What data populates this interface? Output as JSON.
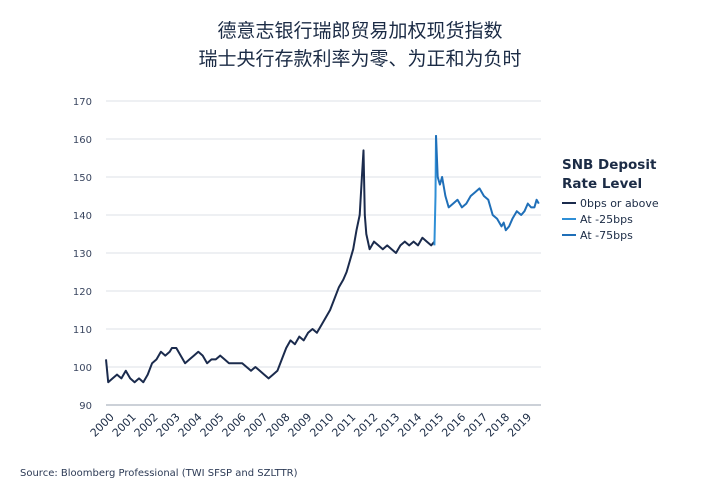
{
  "title_line1": "德意志银行瑞郎贸易加权现货指数",
  "title_line2": "瑞士央行存款利率为零、为正和为负时",
  "source": "Source: Bloomberg Professional (TWI SFSP and SZLTTR)",
  "chart_data": {
    "type": "line",
    "title": "德意志银行瑞郎贸易加权现货指数 瑞士央行存款利率为零、为正和为负时",
    "xlabel": "",
    "ylabel": "",
    "xlim": [
      2000,
      2019.8
    ],
    "ylim": [
      90,
      170
    ],
    "yticks": [
      90,
      100,
      110,
      120,
      130,
      140,
      150,
      160,
      170
    ],
    "xticks": [
      "2000",
      "2001",
      "2002",
      "2003",
      "2004",
      "2005",
      "2006",
      "2007",
      "2008",
      "2009",
      "2010",
      "2011",
      "2012",
      "2013",
      "2014",
      "2015",
      "2016",
      "2017",
      "2018",
      "2019"
    ],
    "grid": "horizontal",
    "legend": {
      "title": "SNB Deposit Rate Level",
      "placement": "right",
      "entries": [
        "0bps or above",
        "At -25bps",
        "At -75bps"
      ]
    },
    "series": [
      {
        "name": "0bps or above",
        "color": "#1b2b4d",
        "x": [
          2000.0,
          2000.1,
          2000.3,
          2000.5,
          2000.7,
          2000.9,
          2001.1,
          2001.3,
          2001.5,
          2001.7,
          2001.9,
          2002.1,
          2002.3,
          2002.5,
          2002.7,
          2002.9,
          2003.0,
          2003.2,
          2003.4,
          2003.6,
          2003.8,
          2004.0,
          2004.2,
          2004.4,
          2004.6,
          2004.8,
          2005.0,
          2005.2,
          2005.4,
          2005.6,
          2005.8,
          2006.0,
          2006.2,
          2006.4,
          2006.6,
          2006.8,
          2007.0,
          2007.2,
          2007.4,
          2007.6,
          2007.8,
          2008.0,
          2008.2,
          2008.4,
          2008.6,
          2008.8,
          2009.0,
          2009.2,
          2009.4,
          2009.6,
          2009.8,
          2010.0,
          2010.2,
          2010.4,
          2010.6,
          2010.8,
          2010.95,
          2011.1,
          2011.25,
          2011.4,
          2011.55,
          2011.65,
          2011.72,
          2011.78,
          2011.85,
          2012.0,
          2012.2,
          2012.4,
          2012.6,
          2012.8,
          2013.0,
          2013.2,
          2013.4,
          2013.6,
          2013.8,
          2014.0,
          2014.2,
          2014.4,
          2014.6,
          2014.8,
          2014.95
        ],
        "y": [
          102,
          96,
          97,
          98,
          97,
          99,
          97,
          96,
          97,
          96,
          98,
          101,
          102,
          104,
          103,
          104,
          105,
          105,
          103,
          101,
          102,
          103,
          104,
          103,
          101,
          102,
          102,
          103,
          102,
          101,
          101,
          101,
          101,
          100,
          99,
          100,
          99,
          98,
          97,
          98,
          99,
          102,
          105,
          107,
          106,
          108,
          107,
          109,
          110,
          109,
          111,
          113,
          115,
          118,
          121,
          123,
          125,
          128,
          131,
          136,
          140,
          150,
          157,
          140,
          135,
          131,
          133,
          132,
          131,
          132,
          131,
          130,
          132,
          133,
          132,
          133,
          132,
          134,
          133,
          132,
          133
        ]
      },
      {
        "name": "At -25bps",
        "color": "#2f8fd6",
        "x": [
          2014.95,
          2015.0,
          2015.02
        ],
        "y": [
          132,
          145,
          161
        ]
      },
      {
        "name": "At -75bps",
        "color": "#1f6fb8",
        "x": [
          2015.02,
          2015.1,
          2015.2,
          2015.3,
          2015.45,
          2015.6,
          2015.8,
          2016.0,
          2016.2,
          2016.4,
          2016.6,
          2016.8,
          2017.0,
          2017.2,
          2017.4,
          2017.6,
          2017.8,
          2018.0,
          2018.1,
          2018.2,
          2018.35,
          2018.5,
          2018.7,
          2018.9,
          2019.05,
          2019.2,
          2019.35,
          2019.5,
          2019.6,
          2019.7
        ],
        "y": [
          161,
          150,
          148,
          150,
          145,
          142,
          143,
          144,
          142,
          143,
          145,
          146,
          147,
          145,
          144,
          140,
          139,
          137,
          138,
          136,
          137,
          139,
          141,
          140,
          141,
          143,
          142,
          142,
          144,
          143
        ]
      }
    ]
  }
}
